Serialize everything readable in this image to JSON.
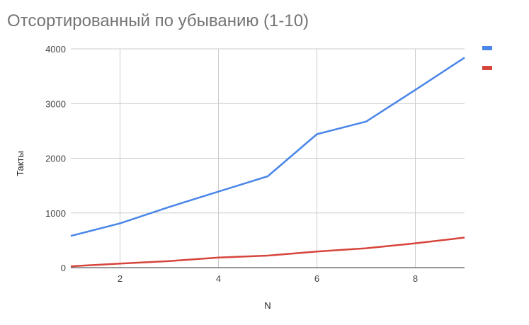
{
  "chart_data": {
    "type": "line",
    "title": "Отсортированный по убыванию (1-10)",
    "xlabel": "N",
    "ylabel": "Такты",
    "xlim": [
      1,
      9
    ],
    "ylim": [
      0,
      4000
    ],
    "x_ticks": [
      2,
      4,
      6,
      8
    ],
    "y_ticks": [
      0,
      1000,
      2000,
      3000,
      4000
    ],
    "grid": true,
    "legend_position": "top-right",
    "x": [
      1,
      2,
      3,
      4,
      5,
      6,
      7,
      8,
      9
    ],
    "series": [
      {
        "color": "#4a86e8",
        "values": [
          580,
          810,
          1110,
          1390,
          1670,
          2440,
          2670,
          3250,
          3840
        ]
      },
      {
        "color": "#d6453b",
        "values": [
          25,
          75,
          120,
          185,
          220,
          295,
          355,
          445,
          550
        ]
      }
    ]
  }
}
